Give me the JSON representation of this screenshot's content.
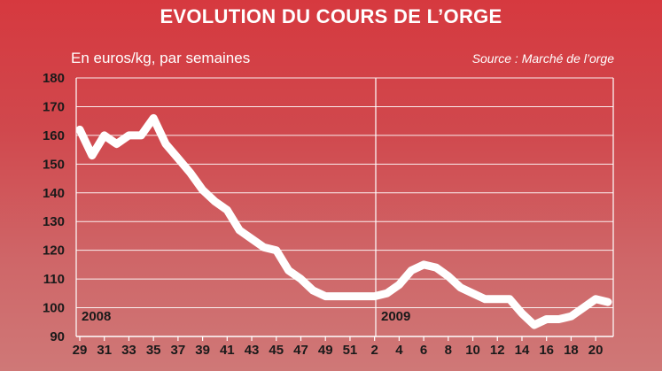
{
  "chart_data": {
    "type": "line",
    "title": "EVOLUTION DU COURS DE L’ORGE",
    "subtitle": "En euros/kg, par semaines",
    "source": "Source : Marché de l’orge",
    "ylim": [
      90,
      180
    ],
    "yticks": [
      90,
      100,
      110,
      120,
      130,
      140,
      150,
      160,
      170,
      180
    ],
    "xticks": [
      "29",
      "31",
      "33",
      "35",
      "37",
      "39",
      "41",
      "43",
      "45",
      "47",
      "49",
      "51",
      "2",
      "4",
      "6",
      "8",
      "10",
      "12",
      "14",
      "16",
      "18",
      "20"
    ],
    "period_labels": [
      "2008",
      "2009"
    ],
    "grid": true,
    "series": [
      {
        "x": [
          29,
          30,
          31,
          32,
          33,
          34,
          35,
          36,
          37,
          38,
          39,
          40,
          41,
          42,
          43,
          44,
          45,
          46,
          47,
          48,
          49,
          50,
          51,
          52,
          "1",
          "2",
          "3",
          "4",
          "5",
          "6",
          "7",
          "8",
          "9",
          "10",
          "11",
          "12",
          "13",
          "14",
          "15",
          "16",
          "17",
          "18",
          "19",
          "20"
        ],
        "values": [
          162,
          153,
          160,
          157,
          160,
          160,
          166,
          157,
          152,
          147,
          141,
          137,
          134,
          127,
          124,
          121,
          120,
          113,
          110,
          106,
          104,
          104,
          104,
          104,
          104,
          105,
          108,
          113,
          115,
          114,
          111,
          107,
          105,
          103,
          103,
          103,
          98,
          94,
          96,
          96,
          97,
          100,
          103,
          102
        ]
      }
    ],
    "colors": {
      "line": "#ffffff",
      "grid": "#ffffff",
      "axis": "#ffffff",
      "tick_text": "#1a1a1a",
      "background_top": "#d6393f",
      "background_bottom": "#cf7877"
    }
  }
}
